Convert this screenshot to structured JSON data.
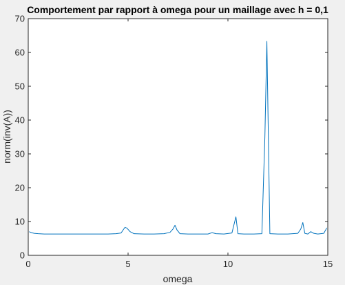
{
  "chart_data": {
    "type": "line",
    "title": "Comportement par rapport à omega pour un maillage avec h = 0,1",
    "xlabel": "omega",
    "ylabel": "norm(inv(A))",
    "xlim": [
      0,
      15
    ],
    "ylim": [
      0,
      70
    ],
    "x_ticks": [
      0,
      5,
      10,
      15
    ],
    "y_ticks": [
      0,
      10,
      20,
      30,
      40,
      50,
      60,
      70
    ],
    "grid": false,
    "series_color": "#0072bd",
    "series": [
      {
        "x": [
          0.05,
          0.15,
          0.3,
          0.5,
          0.8,
          1.2,
          1.6,
          2.0,
          2.5,
          3.0,
          3.5,
          4.0,
          4.4,
          4.65,
          4.75,
          4.85,
          4.95,
          5.1,
          5.3,
          5.8,
          6.3,
          6.8,
          7.1,
          7.25,
          7.35,
          7.45,
          7.6,
          8.0,
          8.5,
          9.0,
          9.2,
          9.4,
          9.8,
          10.2,
          10.3,
          10.4,
          10.5,
          10.8,
          11.3,
          11.7,
          11.85,
          11.95,
          12.1,
          12.5,
          13.0,
          13.5,
          13.65,
          13.75,
          13.85,
          14.0,
          14.15,
          14.3,
          14.5,
          14.8,
          14.95
        ],
        "y": [
          7.0,
          6.7,
          6.5,
          6.4,
          6.3,
          6.3,
          6.3,
          6.3,
          6.3,
          6.3,
          6.3,
          6.3,
          6.4,
          6.6,
          7.5,
          8.3,
          8.0,
          7.0,
          6.4,
          6.3,
          6.3,
          6.4,
          6.8,
          7.8,
          8.9,
          7.5,
          6.4,
          6.3,
          6.3,
          6.3,
          6.7,
          6.4,
          6.3,
          6.6,
          9.0,
          11.4,
          6.4,
          6.3,
          6.3,
          6.4,
          35.0,
          63.3,
          6.4,
          6.3,
          6.3,
          6.5,
          7.8,
          9.7,
          6.5,
          6.3,
          7.0,
          6.5,
          6.3,
          6.5,
          8.1
        ]
      }
    ]
  }
}
